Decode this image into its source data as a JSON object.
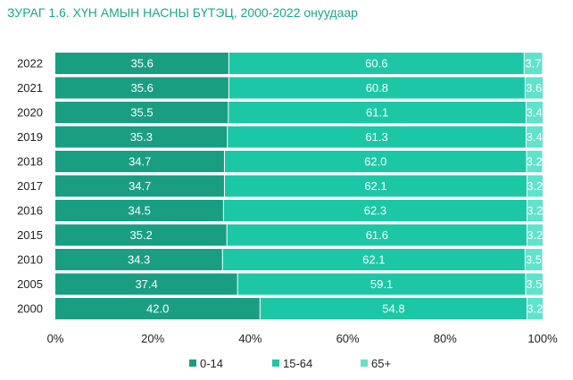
{
  "title": "ЗУРАГ 1.6. ХҮН АМЫН НАСНЫ БҮТЭЦ, 2000-2022 онуудаар",
  "chart_data": {
    "type": "bar",
    "orientation": "horizontal",
    "stacked": true,
    "categories": [
      "2022",
      "2021",
      "2020",
      "2019",
      "2018",
      "2017",
      "2016",
      "2015",
      "2010",
      "2005",
      "2000"
    ],
    "series": [
      {
        "name": "0-14",
        "values": [
          35.6,
          35.6,
          35.5,
          35.3,
          34.7,
          34.7,
          34.5,
          35.2,
          34.3,
          37.4,
          42.0
        ],
        "labels": [
          "35.6",
          "35.6",
          "35.5",
          "35.3",
          "34.7",
          "34.7",
          "34.5",
          "35.2",
          "34.3",
          "37.4",
          "42.0"
        ],
        "color": "#1a9e82"
      },
      {
        "name": "15-64",
        "values": [
          60.6,
          60.8,
          61.1,
          61.3,
          62.0,
          62.1,
          62.3,
          61.6,
          62.1,
          59.1,
          54.8
        ],
        "labels": [
          "60.6",
          "60.8",
          "61.1",
          "61.3",
          "62.0",
          "62.1",
          "62.3",
          "61.6",
          "62.1",
          "59.1",
          "54.8"
        ],
        "color": "#1cc7a6"
      },
      {
        "name": "65+",
        "values": [
          3.7,
          3.6,
          3.4,
          3.4,
          3.2,
          3.2,
          3.2,
          3.2,
          3.5,
          3.5,
          3.2
        ],
        "labels": [
          "3.7",
          "3.6",
          "3.4",
          "3.4",
          "3.2",
          "3.2",
          "3.2",
          "3.2",
          "3.5",
          "3.5",
          "3.2"
        ],
        "color": "#5fe3cb"
      }
    ],
    "xlim": [
      0,
      100
    ],
    "xticks": [
      "0%",
      "20%",
      "40%",
      "60%",
      "80%",
      "100%"
    ],
    "grid": false,
    "legend": "bottom"
  }
}
